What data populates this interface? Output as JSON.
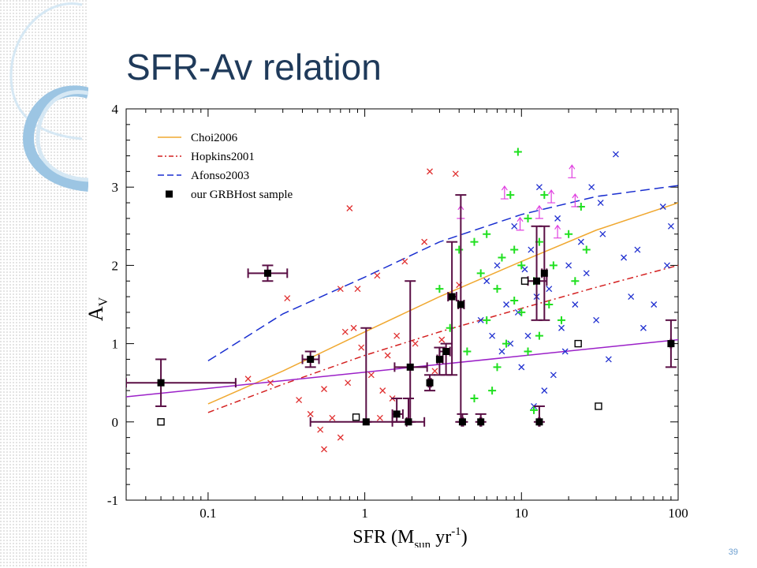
{
  "slide": {
    "title": "SFR-Av relation",
    "page_number": "39"
  },
  "colors": {
    "title": "#1f3a5a",
    "choi": "#f0a830",
    "hopkins": "#d42020",
    "afonso": "#1a2fd0",
    "fit": "#9b20c8",
    "grb": "#000000",
    "errorbar": "#5a0f45",
    "red_x": "#e03030",
    "blue_x": "#2030d0",
    "green_plus": "#20e020",
    "magenta_arrow": "#e040e0",
    "page_number": "#6d9fd0"
  },
  "chart_data": {
    "type": "scatter",
    "xscale": "log",
    "xlim": [
      0.03,
      100
    ],
    "ylim": [
      -1,
      4
    ],
    "xticks": [
      0.1,
      1,
      10,
      100
    ],
    "xtick_labels": [
      "0.1",
      "1",
      "10",
      "100"
    ],
    "yticks": [
      -1,
      0,
      1,
      2,
      3,
      4
    ],
    "ytick_labels": [
      "-1",
      "0",
      "1",
      "2",
      "3",
      "4"
    ],
    "xlabel": {
      "main": "SFR  (M",
      "sub": "sun",
      "mid": " yr",
      "sup": "-1",
      "end": ")"
    },
    "ylabel": {
      "main": "A",
      "sub": "V"
    },
    "legend_position": "top-left",
    "legend": [
      {
        "label": "Choi2006",
        "style": "solid",
        "color": "#f0a830"
      },
      {
        "label": "Hopkins2001",
        "style": "dashdot",
        "color": "#d42020"
      },
      {
        "label": "Afonso2003",
        "style": "dashed",
        "color": "#1a2fd0"
      },
      {
        "label": "our GRBHost sample",
        "style": "square",
        "color": "#000000"
      }
    ],
    "lines": [
      {
        "name": "Choi2006",
        "style": "solid",
        "color": "#f0a830",
        "x": [
          0.1,
          0.3,
          1,
          3,
          10,
          30,
          100
        ],
        "y": [
          0.23,
          0.65,
          1.15,
          1.6,
          2.05,
          2.45,
          2.8
        ]
      },
      {
        "name": "Hopkins2001",
        "style": "dashdot",
        "color": "#d42020",
        "x": [
          0.1,
          0.3,
          1,
          3,
          10,
          30,
          100
        ],
        "y": [
          0.12,
          0.48,
          0.85,
          1.15,
          1.45,
          1.72,
          2.0
        ]
      },
      {
        "name": "Afonso2003",
        "style": "dashed",
        "color": "#1a2fd0",
        "x": [
          0.1,
          0.3,
          1,
          3,
          10,
          30,
          100
        ],
        "y": [
          0.78,
          1.38,
          1.85,
          2.3,
          2.65,
          2.88,
          3.02
        ]
      },
      {
        "name": "",
        "style": "solid",
        "color": "#9b20c8",
        "x": [
          0.03,
          100
        ],
        "y": [
          0.32,
          1.05
        ]
      }
    ],
    "grb_points": [
      {
        "x": 0.05,
        "y": 0.5,
        "xerr": [
          0.03,
          0.15
        ],
        "yerr": [
          0.2,
          0.8
        ]
      },
      {
        "x": 0.24,
        "y": 1.9,
        "xerr": [
          0.18,
          0.32
        ],
        "yerr": [
          1.8,
          2.0
        ]
      },
      {
        "x": 0.45,
        "y": 0.8,
        "xerr": [
          0.4,
          0.51
        ],
        "yerr": [
          0.7,
          0.9
        ]
      },
      {
        "x": 1.02,
        "y": 0.0,
        "xerr": [
          0.45,
          1.85
        ],
        "yerr": [
          0.0,
          1.2
        ]
      },
      {
        "x": 1.6,
        "y": 0.1,
        "xerr": [
          1.5,
          1.75
        ],
        "yerr": [
          0.0,
          0.3
        ]
      },
      {
        "x": 1.95,
        "y": 0.7,
        "xerr": [
          1.55,
          2.5
        ],
        "yerr": [
          0.0,
          1.8
        ]
      },
      {
        "x": 1.9,
        "y": 0.0,
        "xerr": [
          1.5,
          2.4
        ],
        "yerr": [
          0.0,
          0.3
        ]
      },
      {
        "x": 2.6,
        "y": 0.5,
        "xerr": [
          2.55,
          2.65
        ],
        "yerr": [
          0.4,
          0.6
        ]
      },
      {
        "x": 3.0,
        "y": 0.8,
        "xerr": [
          2.9,
          3.15
        ],
        "yerr": [
          0.6,
          0.95
        ]
      },
      {
        "x": 3.3,
        "y": 0.9,
        "xerr": [
          3.0,
          3.5
        ],
        "yerr": [
          0.6,
          1.0
        ]
      },
      {
        "x": 3.6,
        "y": 1.6,
        "xerr": [
          3.4,
          3.85
        ],
        "yerr": [
          0.6,
          2.3
        ]
      },
      {
        "x": 4.1,
        "y": 1.5,
        "xerr": [
          3.95,
          4.3
        ],
        "yerr": [
          0.0,
          2.9
        ]
      },
      {
        "x": 4.2,
        "y": 0.0,
        "xerr": [
          4.15,
          4.25
        ],
        "yerr": [
          0.0,
          0.1
        ]
      },
      {
        "x": 5.5,
        "y": 0.0,
        "xerr": [
          5.45,
          5.55
        ],
        "yerr": [
          0.0,
          0.1
        ]
      },
      {
        "x": 12.5,
        "y": 1.8,
        "xerr": [
          11.0,
          14.5
        ],
        "yerr": [
          1.3,
          2.5
        ]
      },
      {
        "x": 13.0,
        "y": 0.0,
        "xerr": [
          12.9,
          13.1
        ],
        "yerr": [
          0.0,
          0.2
        ]
      },
      {
        "x": 14.0,
        "y": 1.9,
        "xerr": [
          13.5,
          14.5
        ],
        "yerr": [
          1.3,
          2.5
        ]
      },
      {
        "x": 90.0,
        "y": 1.0,
        "xerr": [
          89.5,
          90.5
        ],
        "yerr": [
          0.7,
          1.3
        ]
      }
    ],
    "open_squares": [
      {
        "x": 0.05,
        "y": 0.0
      },
      {
        "x": 0.88,
        "y": 0.06
      },
      {
        "x": 10.5,
        "y": 1.8
      },
      {
        "x": 23.0,
        "y": 1.0
      },
      {
        "x": 31.0,
        "y": 0.2
      }
    ],
    "red_crosses": [
      {
        "x": 0.18,
        "y": 0.55
      },
      {
        "x": 0.25,
        "y": 0.5
      },
      {
        "x": 0.32,
        "y": 1.58
      },
      {
        "x": 0.38,
        "y": 0.28
      },
      {
        "x": 0.45,
        "y": 0.1
      },
      {
        "x": 0.52,
        "y": -0.1
      },
      {
        "x": 0.55,
        "y": 0.42
      },
      {
        "x": 0.62,
        "y": 0.05
      },
      {
        "x": 0.7,
        "y": 1.7
      },
      {
        "x": 0.7,
        "y": -0.2
      },
      {
        "x": 0.75,
        "y": 1.15
      },
      {
        "x": 0.78,
        "y": 0.5
      },
      {
        "x": 0.8,
        "y": 2.73
      },
      {
        "x": 0.85,
        "y": 1.2
      },
      {
        "x": 0.9,
        "y": 1.7
      },
      {
        "x": 0.95,
        "y": 0.95
      },
      {
        "x": 1.1,
        "y": 0.6
      },
      {
        "x": 1.2,
        "y": 1.87
      },
      {
        "x": 1.3,
        "y": 0.4
      },
      {
        "x": 1.4,
        "y": 0.85
      },
      {
        "x": 1.5,
        "y": 0.3
      },
      {
        "x": 1.6,
        "y": 1.1
      },
      {
        "x": 1.8,
        "y": 2.05
      },
      {
        "x": 2.1,
        "y": 1.0
      },
      {
        "x": 2.4,
        "y": 2.3
      },
      {
        "x": 2.6,
        "y": 3.2
      },
      {
        "x": 2.8,
        "y": 0.65
      },
      {
        "x": 3.1,
        "y": 1.05
      },
      {
        "x": 3.8,
        "y": 3.17
      },
      {
        "x": 4.0,
        "y": 1.75
      },
      {
        "x": 0.55,
        "y": -0.35
      },
      {
        "x": 1.25,
        "y": 0.05
      }
    ],
    "blue_crosses": [
      {
        "x": 5.5,
        "y": 1.3
      },
      {
        "x": 6.0,
        "y": 1.8
      },
      {
        "x": 6.5,
        "y": 1.1
      },
      {
        "x": 7.0,
        "y": 2.0
      },
      {
        "x": 7.5,
        "y": 0.9
      },
      {
        "x": 8.0,
        "y": 1.5
      },
      {
        "x": 8.5,
        "y": 1.0
      },
      {
        "x": 9.0,
        "y": 2.5
      },
      {
        "x": 9.5,
        "y": 1.4
      },
      {
        "x": 10.0,
        "y": 0.7
      },
      {
        "x": 10.5,
        "y": 1.95
      },
      {
        "x": 11.0,
        "y": 1.1
      },
      {
        "x": 11.5,
        "y": 2.2
      },
      {
        "x": 12.0,
        "y": 0.2
      },
      {
        "x": 13.0,
        "y": 3.0
      },
      {
        "x": 14.0,
        "y": 0.4
      },
      {
        "x": 15.0,
        "y": 1.7
      },
      {
        "x": 16.0,
        "y": 0.6
      },
      {
        "x": 17.0,
        "y": 2.6
      },
      {
        "x": 18.0,
        "y": 1.2
      },
      {
        "x": 20.0,
        "y": 2.0
      },
      {
        "x": 22.0,
        "y": 1.5
      },
      {
        "x": 24.0,
        "y": 2.3
      },
      {
        "x": 26.0,
        "y": 1.9
      },
      {
        "x": 28.0,
        "y": 3.0
      },
      {
        "x": 30.0,
        "y": 1.3
      },
      {
        "x": 33.0,
        "y": 2.4
      },
      {
        "x": 36.0,
        "y": 0.8
      },
      {
        "x": 40.0,
        "y": 3.42
      },
      {
        "x": 45.0,
        "y": 2.1
      },
      {
        "x": 50.0,
        "y": 1.6
      },
      {
        "x": 55.0,
        "y": 2.2
      },
      {
        "x": 60.0,
        "y": 1.2
      },
      {
        "x": 70.0,
        "y": 1.5
      },
      {
        "x": 80.0,
        "y": 2.75
      },
      {
        "x": 85.0,
        "y": 2.0
      },
      {
        "x": 90.0,
        "y": 2.5
      },
      {
        "x": 32.0,
        "y": 2.8
      },
      {
        "x": 19.0,
        "y": 0.9
      },
      {
        "x": 12.5,
        "y": 1.6
      }
    ],
    "green_pluses": [
      {
        "x": 3.0,
        "y": 1.7
      },
      {
        "x": 3.5,
        "y": 1.2
      },
      {
        "x": 4.0,
        "y": 2.2
      },
      {
        "x": 4.5,
        "y": 0.9
      },
      {
        "x": 5.0,
        "y": 2.3
      },
      {
        "x": 5.0,
        "y": 0.3
      },
      {
        "x": 5.5,
        "y": 1.9
      },
      {
        "x": 6.0,
        "y": 2.4
      },
      {
        "x": 6.0,
        "y": 1.3
      },
      {
        "x": 6.5,
        "y": 0.4
      },
      {
        "x": 7.0,
        "y": 1.7
      },
      {
        "x": 7.5,
        "y": 2.1
      },
      {
        "x": 8.0,
        "y": 1.0
      },
      {
        "x": 8.5,
        "y": 2.9
      },
      {
        "x": 9.0,
        "y": 1.55
      },
      {
        "x": 9.5,
        "y": 3.45
      },
      {
        "x": 10.0,
        "y": 2.0
      },
      {
        "x": 10.0,
        "y": 1.4
      },
      {
        "x": 11.0,
        "y": 2.6
      },
      {
        "x": 11.0,
        "y": 0.9
      },
      {
        "x": 12.0,
        "y": 1.8
      },
      {
        "x": 12.0,
        "y": 0.15
      },
      {
        "x": 13.0,
        "y": 2.3
      },
      {
        "x": 13.0,
        "y": 1.1
      },
      {
        "x": 14.0,
        "y": 2.9
      },
      {
        "x": 15.0,
        "y": 1.5
      },
      {
        "x": 16.0,
        "y": 2.0
      },
      {
        "x": 18.0,
        "y": 1.3
      },
      {
        "x": 20.0,
        "y": 2.4
      },
      {
        "x": 22.0,
        "y": 1.8
      },
      {
        "x": 24.0,
        "y": 2.75
      },
      {
        "x": 26.0,
        "y": 2.2
      },
      {
        "x": 7.0,
        "y": 0.7
      },
      {
        "x": 9.0,
        "y": 2.2
      }
    ],
    "lower_limit_arrows": [
      {
        "x": 4.1,
        "y": 2.6
      },
      {
        "x": 7.8,
        "y": 2.85
      },
      {
        "x": 9.8,
        "y": 2.45
      },
      {
        "x": 13.0,
        "y": 2.6
      },
      {
        "x": 15.5,
        "y": 2.8
      },
      {
        "x": 17.0,
        "y": 2.35
      },
      {
        "x": 21.0,
        "y": 3.12
      },
      {
        "x": 22.0,
        "y": 2.75
      }
    ]
  }
}
